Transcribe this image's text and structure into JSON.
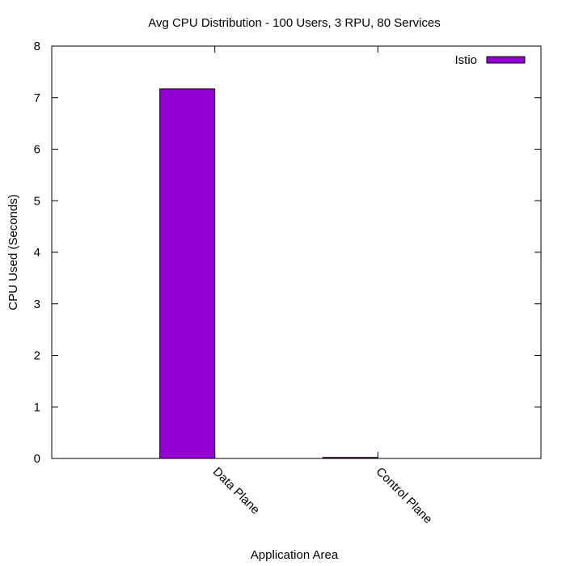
{
  "chart_data": {
    "type": "bar",
    "title": "Avg CPU Distribution - 100 Users, 3 RPU, 80 Services",
    "xlabel": "Application Area",
    "ylabel": "CPU Used (Seconds)",
    "categories": [
      "Data Plane",
      "Control Plane"
    ],
    "series": [
      {
        "name": "Istio",
        "values": [
          7.17,
          0.02
        ],
        "color": "#9400d3"
      }
    ],
    "ylim": [
      0,
      8
    ],
    "yticks": [
      "0",
      "1",
      "2",
      "3",
      "4",
      "5",
      "6",
      "7",
      "8"
    ],
    "grid": false,
    "legend_position": "top-right"
  }
}
